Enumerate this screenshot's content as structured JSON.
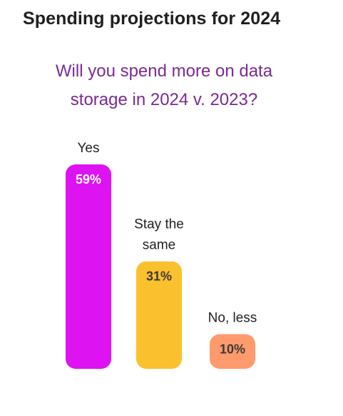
{
  "header": {
    "title": "Spending projections for 2024"
  },
  "question": {
    "line1": "Will you spend more on data",
    "line2": "storage in 2024 v. 2023?"
  },
  "colors": {
    "title": "#1f1f1f",
    "question": "#7b2a93",
    "yes": "#dd13f2",
    "same": "#fbc02d",
    "less": "#ff9a6c"
  },
  "chart_data": {
    "type": "bar",
    "title": "",
    "xlabel": "",
    "ylabel": "",
    "ylim": [
      0,
      59
    ],
    "grid": false,
    "legend": "none",
    "categories": [
      "Yes",
      "Stay the same",
      "No, less"
    ],
    "category_lines": [
      [
        "Yes"
      ],
      [
        "Stay the",
        "same"
      ],
      [
        "No, less"
      ]
    ],
    "values": [
      59,
      31,
      10
    ],
    "value_labels": [
      "59%",
      "31%",
      "10%"
    ],
    "bar_colors": [
      "#dd13f2",
      "#fbc02d",
      "#ff9a6c"
    ],
    "value_label_colors": [
      "#ffffff",
      "#3a3a3a",
      "#3a3a3a"
    ]
  }
}
